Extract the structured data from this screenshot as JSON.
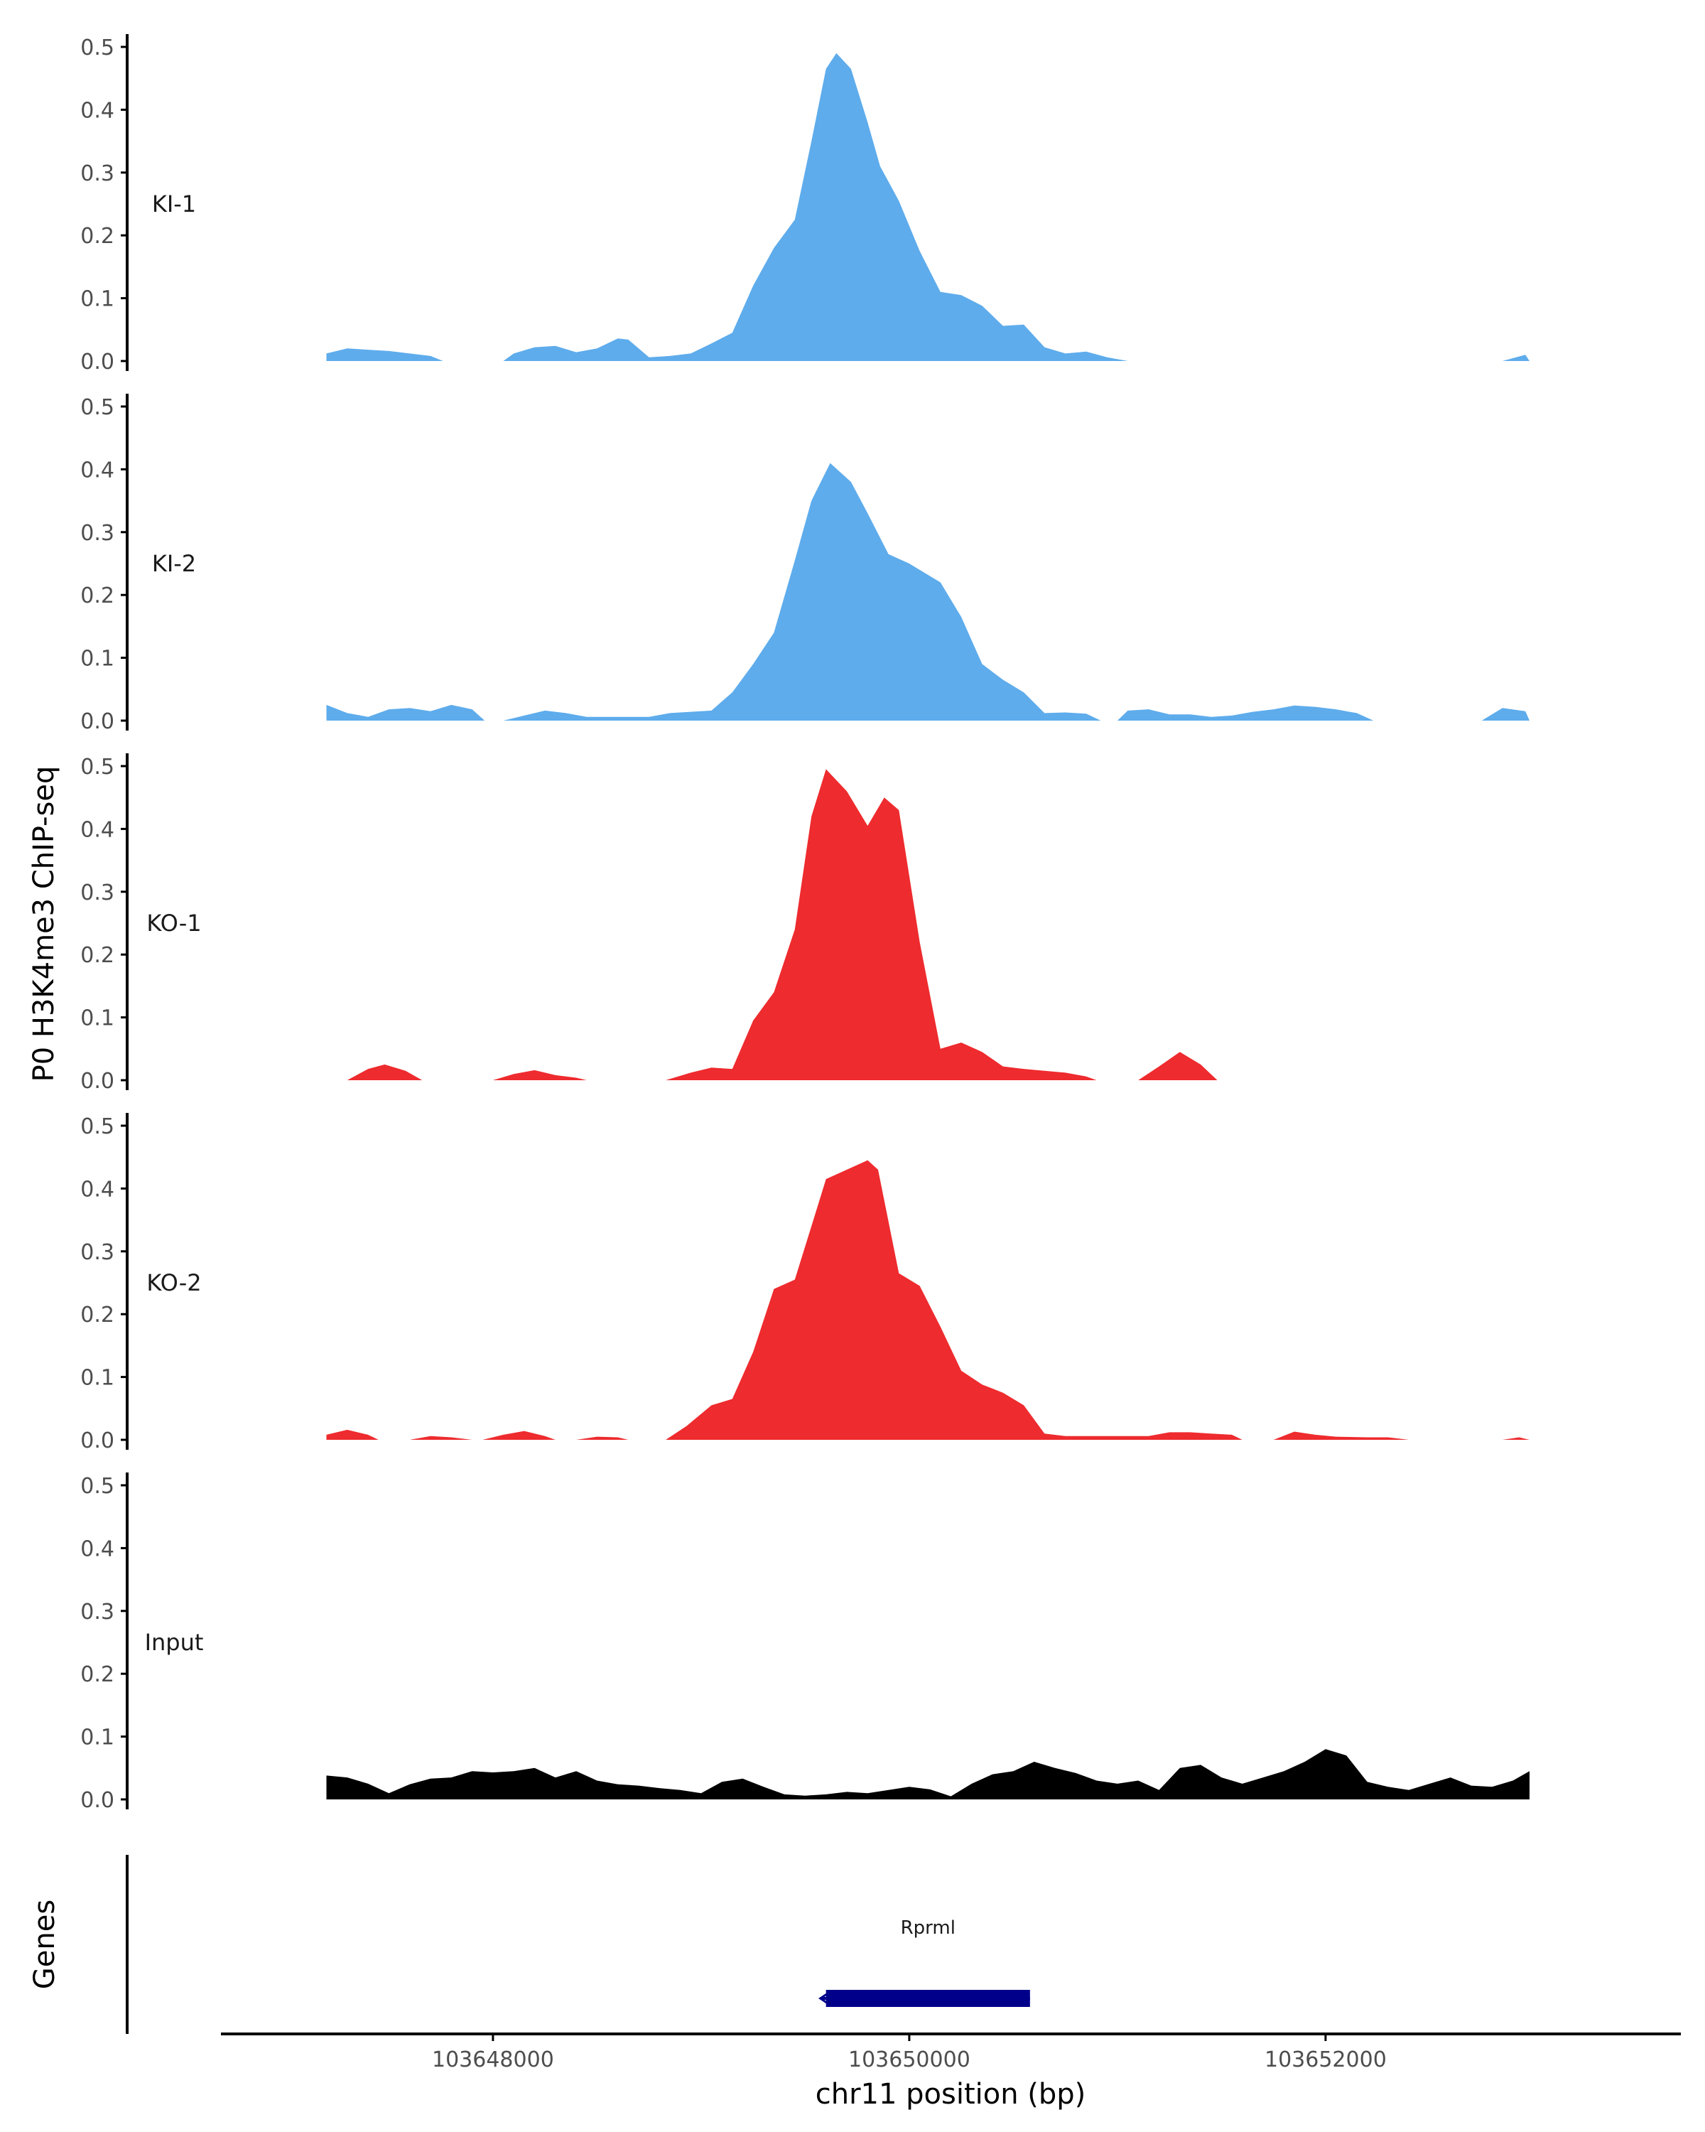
{
  "chart_data": {
    "type": "area",
    "ylabel": "P0 H3K4me3 ChIP-seq",
    "xlabel": "chr11 position (bp)",
    "genes_label": "Genes",
    "ylim": [
      0,
      0.5
    ],
    "yticks": [
      0.0,
      0.1,
      0.2,
      0.3,
      0.4,
      0.5
    ],
    "ytick_labels": [
      "0.0",
      "0.1",
      "0.2",
      "0.3",
      "0.4",
      "0.5"
    ],
    "xlim": [
      103646700,
      103653700
    ],
    "xticks": [
      103648000,
      103650000,
      103652000
    ],
    "xtick_labels": [
      "103648000",
      "103650000",
      "103652000"
    ],
    "grid": false,
    "tracks": [
      {
        "name": "KI-1",
        "color": "#5EACEC",
        "points": [
          [
            103647200,
            0.012
          ],
          [
            103647300,
            0.02
          ],
          [
            103647400,
            0.018
          ],
          [
            103647500,
            0.016
          ],
          [
            103647600,
            0.012
          ],
          [
            103647700,
            0.008
          ],
          [
            103647760,
            0.0
          ],
          [
            103648050,
            0.0
          ],
          [
            103648100,
            0.012
          ],
          [
            103648200,
            0.022
          ],
          [
            103648300,
            0.024
          ],
          [
            103648400,
            0.014
          ],
          [
            103648500,
            0.02
          ],
          [
            103648600,
            0.036
          ],
          [
            103648650,
            0.034
          ],
          [
            103648750,
            0.006
          ],
          [
            103648850,
            0.008
          ],
          [
            103648950,
            0.012
          ],
          [
            103649050,
            0.028
          ],
          [
            103649150,
            0.045
          ],
          [
            103649250,
            0.12
          ],
          [
            103649350,
            0.18
          ],
          [
            103649450,
            0.225
          ],
          [
            103649530,
            0.35
          ],
          [
            103649600,
            0.465
          ],
          [
            103649650,
            0.49
          ],
          [
            103649720,
            0.465
          ],
          [
            103649800,
            0.38
          ],
          [
            103649860,
            0.31
          ],
          [
            103649950,
            0.255
          ],
          [
            103650050,
            0.175
          ],
          [
            103650150,
            0.11
          ],
          [
            103650250,
            0.105
          ],
          [
            103650350,
            0.088
          ],
          [
            103650450,
            0.056
          ],
          [
            103650550,
            0.058
          ],
          [
            103650650,
            0.022
          ],
          [
            103650750,
            0.012
          ],
          [
            103650850,
            0.015
          ],
          [
            103650950,
            0.006
          ],
          [
            103651050,
            0.0
          ],
          [
            103652850,
            0.0
          ],
          [
            103652960,
            0.01
          ],
          [
            103652980,
            0.0
          ]
        ]
      },
      {
        "name": "KI-2",
        "color": "#5EACEC",
        "points": [
          [
            103647200,
            0.025
          ],
          [
            103647300,
            0.012
          ],
          [
            103647400,
            0.006
          ],
          [
            103647500,
            0.018
          ],
          [
            103647600,
            0.02
          ],
          [
            103647700,
            0.015
          ],
          [
            103647800,
            0.025
          ],
          [
            103647900,
            0.018
          ],
          [
            103647960,
            0.0
          ],
          [
            103648050,
            0.0
          ],
          [
            103648150,
            0.008
          ],
          [
            103648250,
            0.016
          ],
          [
            103648350,
            0.012
          ],
          [
            103648450,
            0.006
          ],
          [
            103648600,
            0.006
          ],
          [
            103648750,
            0.006
          ],
          [
            103648850,
            0.012
          ],
          [
            103648950,
            0.014
          ],
          [
            103649050,
            0.016
          ],
          [
            103649150,
            0.045
          ],
          [
            103649250,
            0.09
          ],
          [
            103649350,
            0.14
          ],
          [
            103649450,
            0.255
          ],
          [
            103649530,
            0.35
          ],
          [
            103649620,
            0.41
          ],
          [
            103649720,
            0.38
          ],
          [
            103649800,
            0.33
          ],
          [
            103649900,
            0.265
          ],
          [
            103650000,
            0.25
          ],
          [
            103650060,
            0.238
          ],
          [
            103650150,
            0.22
          ],
          [
            103650250,
            0.165
          ],
          [
            103650350,
            0.09
          ],
          [
            103650450,
            0.065
          ],
          [
            103650550,
            0.045
          ],
          [
            103650650,
            0.012
          ],
          [
            103650750,
            0.013
          ],
          [
            103650850,
            0.011
          ],
          [
            103650920,
            0.0
          ],
          [
            103651000,
            0.0
          ],
          [
            103651050,
            0.016
          ],
          [
            103651150,
            0.018
          ],
          [
            103651250,
            0.01
          ],
          [
            103651350,
            0.01
          ],
          [
            103651450,
            0.006
          ],
          [
            103651550,
            0.008
          ],
          [
            103651650,
            0.014
          ],
          [
            103651750,
            0.018
          ],
          [
            103651850,
            0.024
          ],
          [
            103651950,
            0.022
          ],
          [
            103652050,
            0.018
          ],
          [
            103652150,
            0.012
          ],
          [
            103652230,
            0.0
          ],
          [
            103652750,
            0.0
          ],
          [
            103652850,
            0.02
          ],
          [
            103652960,
            0.015
          ],
          [
            103652980,
            0.0
          ]
        ]
      },
      {
        "name": "KO-1",
        "color": "#EE2B2E",
        "points": [
          [
            103647300,
            0.0
          ],
          [
            103647400,
            0.018
          ],
          [
            103647480,
            0.025
          ],
          [
            103647580,
            0.015
          ],
          [
            103647660,
            0.0
          ],
          [
            103648000,
            0.0
          ],
          [
            103648100,
            0.01
          ],
          [
            103648200,
            0.016
          ],
          [
            103648300,
            0.008
          ],
          [
            103648400,
            0.004
          ],
          [
            103648450,
            0.0
          ],
          [
            103648830,
            0.0
          ],
          [
            103648950,
            0.012
          ],
          [
            103649050,
            0.02
          ],
          [
            103649150,
            0.018
          ],
          [
            103649250,
            0.095
          ],
          [
            103649350,
            0.14
          ],
          [
            103649450,
            0.24
          ],
          [
            103649530,
            0.42
          ],
          [
            103649600,
            0.495
          ],
          [
            103649700,
            0.46
          ],
          [
            103649800,
            0.405
          ],
          [
            103649880,
            0.45
          ],
          [
            103649950,
            0.43
          ],
          [
            103650050,
            0.22
          ],
          [
            103650150,
            0.05
          ],
          [
            103650250,
            0.06
          ],
          [
            103650350,
            0.045
          ],
          [
            103650450,
            0.022
          ],
          [
            103650550,
            0.018
          ],
          [
            103650650,
            0.015
          ],
          [
            103650750,
            0.012
          ],
          [
            103650850,
            0.006
          ],
          [
            103650900,
            0.0
          ],
          [
            103651100,
            0.0
          ],
          [
            103651200,
            0.022
          ],
          [
            103651300,
            0.045
          ],
          [
            103651400,
            0.025
          ],
          [
            103651480,
            0.0
          ]
        ]
      },
      {
        "name": "KO-2",
        "color": "#EE2B2E",
        "points": [
          [
            103647200,
            0.008
          ],
          [
            103647300,
            0.016
          ],
          [
            103647400,
            0.008
          ],
          [
            103647450,
            0.0
          ],
          [
            103647600,
            0.0
          ],
          [
            103647700,
            0.006
          ],
          [
            103647800,
            0.004
          ],
          [
            103647900,
            0.0
          ],
          [
            103647950,
            0.0
          ],
          [
            103648050,
            0.008
          ],
          [
            103648150,
            0.014
          ],
          [
            103648250,
            0.006
          ],
          [
            103648300,
            0.0
          ],
          [
            103648400,
            0.0
          ],
          [
            103648500,
            0.005
          ],
          [
            103648600,
            0.004
          ],
          [
            103648650,
            0.0
          ],
          [
            103648830,
            0.0
          ],
          [
            103648930,
            0.022
          ],
          [
            103649050,
            0.055
          ],
          [
            103649150,
            0.065
          ],
          [
            103649250,
            0.14
          ],
          [
            103649350,
            0.24
          ],
          [
            103649450,
            0.255
          ],
          [
            103649530,
            0.34
          ],
          [
            103649600,
            0.415
          ],
          [
            103649700,
            0.43
          ],
          [
            103649800,
            0.445
          ],
          [
            103649850,
            0.43
          ],
          [
            103649950,
            0.265
          ],
          [
            103650050,
            0.245
          ],
          [
            103650150,
            0.18
          ],
          [
            103650250,
            0.11
          ],
          [
            103650350,
            0.088
          ],
          [
            103650450,
            0.075
          ],
          [
            103650550,
            0.055
          ],
          [
            103650650,
            0.01
          ],
          [
            103650750,
            0.006
          ],
          [
            103650950,
            0.006
          ],
          [
            103651150,
            0.006
          ],
          [
            103651250,
            0.012
          ],
          [
            103651350,
            0.012
          ],
          [
            103651450,
            0.01
          ],
          [
            103651550,
            0.008
          ],
          [
            103651600,
            0.0
          ],
          [
            103651750,
            0.0
          ],
          [
            103651850,
            0.013
          ],
          [
            103651950,
            0.008
          ],
          [
            103652050,
            0.005
          ],
          [
            103652200,
            0.004
          ],
          [
            103652300,
            0.004
          ],
          [
            103652400,
            0.0
          ],
          [
            103652850,
            0.0
          ],
          [
            103652930,
            0.004
          ],
          [
            103652980,
            0.0
          ]
        ]
      },
      {
        "name": "Input",
        "color": "#000000",
        "points": [
          [
            103647200,
            0.038
          ],
          [
            103647300,
            0.035
          ],
          [
            103647400,
            0.025
          ],
          [
            103647500,
            0.01
          ],
          [
            103647600,
            0.024
          ],
          [
            103647700,
            0.033
          ],
          [
            103647800,
            0.035
          ],
          [
            103647900,
            0.045
          ],
          [
            103648000,
            0.043
          ],
          [
            103648100,
            0.045
          ],
          [
            103648200,
            0.05
          ],
          [
            103648300,
            0.035
          ],
          [
            103648400,
            0.045
          ],
          [
            103648500,
            0.03
          ],
          [
            103648600,
            0.024
          ],
          [
            103648700,
            0.022
          ],
          [
            103648800,
            0.018
          ],
          [
            103648900,
            0.015
          ],
          [
            103649000,
            0.01
          ],
          [
            103649100,
            0.028
          ],
          [
            103649200,
            0.033
          ],
          [
            103649300,
            0.02
          ],
          [
            103649400,
            0.008
          ],
          [
            103649500,
            0.006
          ],
          [
            103649600,
            0.008
          ],
          [
            103649700,
            0.012
          ],
          [
            103649800,
            0.01
          ],
          [
            103649900,
            0.015
          ],
          [
            103650000,
            0.02
          ],
          [
            103650100,
            0.016
          ],
          [
            103650200,
            0.005
          ],
          [
            103650300,
            0.025
          ],
          [
            103650400,
            0.04
          ],
          [
            103650500,
            0.045
          ],
          [
            103650600,
            0.06
          ],
          [
            103650700,
            0.05
          ],
          [
            103650800,
            0.042
          ],
          [
            103650900,
            0.03
          ],
          [
            103651000,
            0.025
          ],
          [
            103651100,
            0.03
          ],
          [
            103651200,
            0.015
          ],
          [
            103651300,
            0.05
          ],
          [
            103651400,
            0.055
          ],
          [
            103651500,
            0.035
          ],
          [
            103651600,
            0.025
          ],
          [
            103651700,
            0.035
          ],
          [
            103651800,
            0.045
          ],
          [
            103651900,
            0.06
          ],
          [
            103652000,
            0.08
          ],
          [
            103652100,
            0.07
          ],
          [
            103652200,
            0.028
          ],
          [
            103652300,
            0.02
          ],
          [
            103652400,
            0.015
          ],
          [
            103652500,
            0.025
          ],
          [
            103652600,
            0.035
          ],
          [
            103652700,
            0.022
          ],
          [
            103652800,
            0.02
          ],
          [
            103652900,
            0.03
          ],
          [
            103652980,
            0.045
          ]
        ]
      }
    ],
    "gene": {
      "name": "Rprml",
      "start": 103649600,
      "end": 103650580,
      "color": "#00008B",
      "strand": "-"
    }
  }
}
